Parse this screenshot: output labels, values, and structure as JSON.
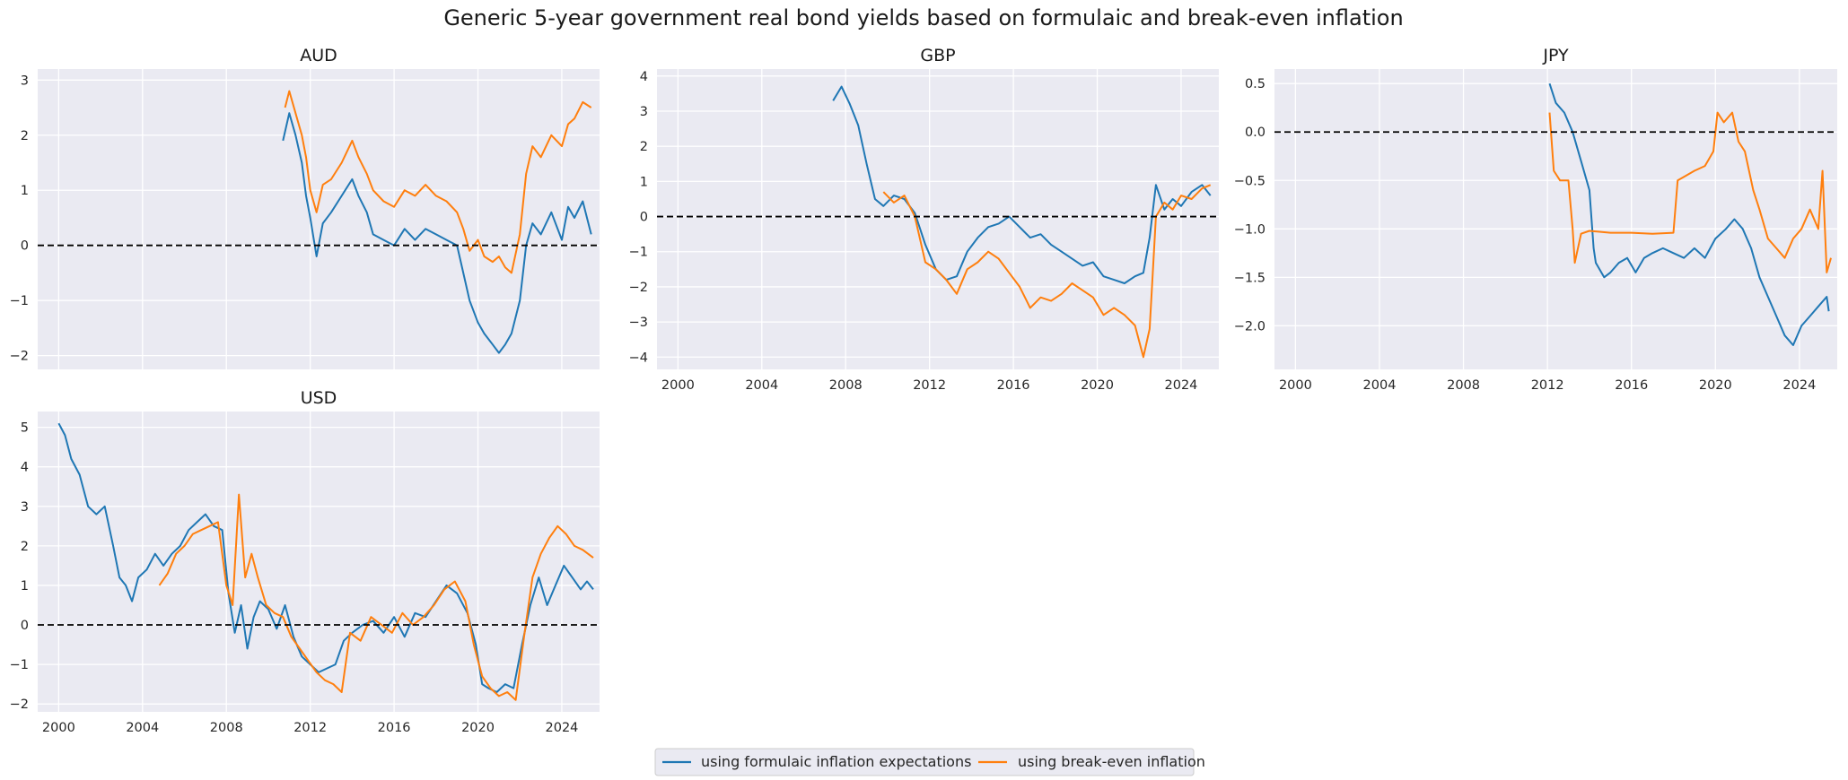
{
  "title": "Generic 5-year government real bond yields based on formulaic and break-even inflation",
  "legend": [
    {
      "label": "using formulaic inflation expectations",
      "color": "#1f77b4"
    },
    {
      "label": "using break-even inflation",
      "color": "#ff7f0e"
    }
  ],
  "colors": {
    "series1": "#1f77b4",
    "series2": "#ff7f0e",
    "panel_bg": "#eaeaf2",
    "grid": "#ffffff",
    "zero_line": "#000000"
  },
  "chart_data": [
    {
      "type": "line",
      "title": "AUD",
      "xlim": [
        1999,
        2025.8
      ],
      "ylim": [
        -2.25,
        3.2
      ],
      "yticks": [
        -2,
        -1,
        0,
        1,
        2,
        3
      ],
      "ytick_labels": [
        "−2",
        "−1",
        "0",
        "1",
        "2",
        "3"
      ],
      "xticks": [
        2000,
        2004,
        2008,
        2012,
        2016,
        2020,
        2024
      ],
      "xtick_labels": [],
      "zero_line": 0,
      "series": [
        {
          "name": "using formulaic inflation expectations",
          "x": [
            2010.7,
            2011.0,
            2011.3,
            2011.6,
            2011.8,
            2012.0,
            2012.3,
            2012.6,
            2013.0,
            2013.5,
            2014.0,
            2014.3,
            2014.7,
            2015.0,
            2015.5,
            2016.0,
            2016.5,
            2017.0,
            2017.5,
            2018.0,
            2018.5,
            2019.0,
            2019.3,
            2019.6,
            2020.0,
            2020.3,
            2020.7,
            2021.0,
            2021.3,
            2021.6,
            2022.0,
            2022.3,
            2022.6,
            2023.0,
            2023.5,
            2024.0,
            2024.3,
            2024.6,
            2025.0,
            2025.4
          ],
          "values": [
            1.9,
            2.4,
            2.0,
            1.5,
            0.9,
            0.5,
            -0.2,
            0.4,
            0.6,
            0.9,
            1.2,
            0.9,
            0.6,
            0.2,
            0.1,
            0.0,
            0.3,
            0.1,
            0.3,
            0.2,
            0.1,
            0.0,
            -0.5,
            -1.0,
            -1.4,
            -1.6,
            -1.8,
            -1.95,
            -1.8,
            -1.6,
            -1.0,
            0.0,
            0.4,
            0.2,
            0.6,
            0.1,
            0.7,
            0.5,
            0.8,
            0.2
          ]
        },
        {
          "name": "using break-even inflation",
          "x": [
            2010.8,
            2011.0,
            2011.3,
            2011.6,
            2011.8,
            2012.0,
            2012.3,
            2012.6,
            2013.0,
            2013.5,
            2014.0,
            2014.3,
            2014.7,
            2015.0,
            2015.5,
            2016.0,
            2016.5,
            2017.0,
            2017.5,
            2018.0,
            2018.5,
            2019.0,
            2019.3,
            2019.6,
            2020.0,
            2020.3,
            2020.7,
            2021.0,
            2021.3,
            2021.6,
            2022.0,
            2022.3,
            2022.6,
            2023.0,
            2023.5,
            2024.0,
            2024.3,
            2024.6,
            2025.0,
            2025.4
          ],
          "values": [
            2.5,
            2.8,
            2.4,
            2.0,
            1.6,
            1.0,
            0.6,
            1.1,
            1.2,
            1.5,
            1.9,
            1.6,
            1.3,
            1.0,
            0.8,
            0.7,
            1.0,
            0.9,
            1.1,
            0.9,
            0.8,
            0.6,
            0.3,
            -0.1,
            0.1,
            -0.2,
            -0.3,
            -0.2,
            -0.4,
            -0.5,
            0.2,
            1.3,
            1.8,
            1.6,
            2.0,
            1.8,
            2.2,
            2.3,
            2.6,
            2.5
          ]
        }
      ]
    },
    {
      "type": "line",
      "title": "GBP",
      "xlim": [
        1999,
        2025.8
      ],
      "ylim": [
        -4.35,
        4.2
      ],
      "yticks": [
        -4,
        -3,
        -2,
        -1,
        0,
        1,
        2,
        3,
        4
      ],
      "ytick_labels": [
        "−4",
        "−3",
        "−2",
        "−1",
        "0",
        "1",
        "2",
        "3",
        "4"
      ],
      "xticks": [
        2000,
        2004,
        2008,
        2012,
        2016,
        2020,
        2024
      ],
      "xtick_labels": [
        "2000",
        "2004",
        "2008",
        "2012",
        "2016",
        "2020",
        "2024"
      ],
      "zero_line": 0,
      "series": [
        {
          "name": "using formulaic inflation expectations",
          "x": [
            2007.4,
            2007.8,
            2008.2,
            2008.6,
            2009.0,
            2009.4,
            2009.8,
            2010.3,
            2010.8,
            2011.3,
            2011.8,
            2012.3,
            2012.8,
            2013.3,
            2013.8,
            2014.3,
            2014.8,
            2015.3,
            2015.8,
            2016.3,
            2016.8,
            2017.3,
            2017.8,
            2018.3,
            2018.8,
            2019.3,
            2019.8,
            2020.3,
            2020.8,
            2021.3,
            2021.8,
            2022.2,
            2022.5,
            2022.8,
            2023.2,
            2023.6,
            2024.0,
            2024.5,
            2025.0,
            2025.4
          ],
          "values": [
            3.3,
            3.7,
            3.2,
            2.6,
            1.5,
            0.5,
            0.3,
            0.6,
            0.5,
            0.1,
            -0.8,
            -1.5,
            -1.8,
            -1.7,
            -1.0,
            -0.6,
            -0.3,
            -0.2,
            0.0,
            -0.3,
            -0.6,
            -0.5,
            -0.8,
            -1.0,
            -1.2,
            -1.4,
            -1.3,
            -1.7,
            -1.8,
            -1.9,
            -1.7,
            -1.6,
            -0.6,
            0.9,
            0.2,
            0.5,
            0.3,
            0.7,
            0.9,
            0.6
          ]
        },
        {
          "name": "using break-even inflation",
          "x": [
            2009.8,
            2010.3,
            2010.8,
            2011.3,
            2011.8,
            2012.3,
            2012.8,
            2013.3,
            2013.8,
            2014.3,
            2014.8,
            2015.3,
            2015.8,
            2016.3,
            2016.8,
            2017.3,
            2017.8,
            2018.3,
            2018.8,
            2019.3,
            2019.8,
            2020.3,
            2020.8,
            2021.3,
            2021.8,
            2022.2,
            2022.5,
            2022.8,
            2023.2,
            2023.6,
            2024.0,
            2024.5,
            2025.0,
            2025.4
          ],
          "values": [
            0.7,
            0.4,
            0.6,
            0.0,
            -1.3,
            -1.5,
            -1.8,
            -2.2,
            -1.5,
            -1.3,
            -1.0,
            -1.2,
            -1.6,
            -2.0,
            -2.6,
            -2.3,
            -2.4,
            -2.2,
            -1.9,
            -2.1,
            -2.3,
            -2.8,
            -2.6,
            -2.8,
            -3.1,
            -4.0,
            -3.2,
            0.0,
            0.4,
            0.2,
            0.6,
            0.5,
            0.8,
            0.9
          ]
        }
      ]
    },
    {
      "type": "line",
      "title": "JPY",
      "xlim": [
        1999,
        2025.8
      ],
      "ylim": [
        -2.45,
        0.65
      ],
      "yticks": [
        -2.0,
        -1.5,
        -1.0,
        -0.5,
        0.0,
        0.5
      ],
      "ytick_labels": [
        "−2.0",
        "−1.5",
        "−1.0",
        "−0.5",
        "0.0",
        "0.5"
      ],
      "xticks": [
        2000,
        2004,
        2008,
        2012,
        2016,
        2020,
        2024
      ],
      "xtick_labels": [
        "2000",
        "2004",
        "2008",
        "2012",
        "2016",
        "2020",
        "2024"
      ],
      "zero_line": 0,
      "series": [
        {
          "name": "using formulaic inflation expectations",
          "x": [
            2012.1,
            2012.4,
            2012.8,
            2013.2,
            2013.6,
            2014.0,
            2014.2,
            2014.3,
            2014.7,
            2015.0,
            2015.4,
            2015.8,
            2016.2,
            2016.6,
            2017.0,
            2017.5,
            2018.0,
            2018.5,
            2019.0,
            2019.5,
            2020.0,
            2020.5,
            2020.9,
            2021.3,
            2021.7,
            2022.1,
            2022.5,
            2022.9,
            2023.3,
            2023.7,
            2024.1,
            2024.5,
            2024.9,
            2025.3,
            2025.4
          ],
          "values": [
            0.5,
            0.3,
            0.2,
            0.0,
            -0.3,
            -0.6,
            -1.2,
            -1.35,
            -1.5,
            -1.45,
            -1.35,
            -1.3,
            -1.45,
            -1.3,
            -1.25,
            -1.2,
            -1.25,
            -1.3,
            -1.2,
            -1.3,
            -1.1,
            -1.0,
            -0.9,
            -1.0,
            -1.2,
            -1.5,
            -1.7,
            -1.9,
            -2.1,
            -2.2,
            -2.0,
            -1.9,
            -1.8,
            -1.7,
            -1.85
          ]
        },
        {
          "name": "using break-even inflation",
          "x": [
            2012.1,
            2012.3,
            2012.6,
            2013.0,
            2013.2,
            2013.3,
            2013.6,
            2014.0,
            2015.0,
            2016.0,
            2017.0,
            2018.0,
            2018.2,
            2018.6,
            2019.0,
            2019.5,
            2019.9,
            2020.1,
            2020.4,
            2020.8,
            2021.1,
            2021.4,
            2021.8,
            2022.1,
            2022.5,
            2022.9,
            2023.3,
            2023.7,
            2024.1,
            2024.5,
            2024.9,
            2025.1,
            2025.3,
            2025.5
          ],
          "values": [
            0.2,
            -0.4,
            -0.5,
            -0.5,
            -1.0,
            -1.35,
            -1.05,
            -1.02,
            -1.04,
            -1.04,
            -1.05,
            -1.04,
            -0.5,
            -0.45,
            -0.4,
            -0.35,
            -0.2,
            0.2,
            0.1,
            0.2,
            -0.1,
            -0.2,
            -0.6,
            -0.8,
            -1.1,
            -1.2,
            -1.3,
            -1.1,
            -1.0,
            -0.8,
            -1.0,
            -0.4,
            -1.45,
            -1.3
          ]
        }
      ]
    },
    {
      "type": "line",
      "title": "USD",
      "xlim": [
        1999,
        2025.8
      ],
      "ylim": [
        -2.2,
        5.4
      ],
      "yticks": [
        -2,
        -1,
        0,
        1,
        2,
        3,
        4,
        5
      ],
      "ytick_labels": [
        "−2",
        "−1",
        "0",
        "1",
        "2",
        "3",
        "4",
        "5"
      ],
      "xticks": [
        2000,
        2004,
        2008,
        2012,
        2016,
        2020,
        2024
      ],
      "xtick_labels": [
        "2000",
        "2004",
        "2008",
        "2012",
        "2016",
        "2020",
        "2024"
      ],
      "zero_line": 0,
      "series": [
        {
          "name": "using formulaic inflation expectations",
          "x": [
            2000.0,
            2000.3,
            2000.6,
            2001.0,
            2001.4,
            2001.8,
            2002.2,
            2002.6,
            2002.9,
            2003.2,
            2003.5,
            2003.8,
            2004.2,
            2004.6,
            2005.0,
            2005.4,
            2005.8,
            2006.2,
            2006.6,
            2007.0,
            2007.4,
            2007.8,
            2008.1,
            2008.4,
            2008.7,
            2009.0,
            2009.3,
            2009.6,
            2010.0,
            2010.4,
            2010.8,
            2011.2,
            2011.6,
            2012.0,
            2012.4,
            2012.8,
            2013.2,
            2013.6,
            2014.0,
            2014.5,
            2015.0,
            2015.5,
            2016.0,
            2016.5,
            2017.0,
            2017.5,
            2018.0,
            2018.5,
            2019.0,
            2019.5,
            2019.9,
            2020.2,
            2020.5,
            2020.9,
            2021.3,
            2021.7,
            2022.1,
            2022.5,
            2022.9,
            2023.3,
            2023.7,
            2024.1,
            2024.5,
            2024.9,
            2025.2,
            2025.5
          ],
          "values": [
            5.1,
            4.8,
            4.2,
            3.8,
            3.0,
            2.8,
            3.0,
            2.0,
            1.2,
            1.0,
            0.6,
            1.2,
            1.4,
            1.8,
            1.5,
            1.8,
            2.0,
            2.4,
            2.6,
            2.8,
            2.5,
            2.4,
            0.8,
            -0.2,
            0.5,
            -0.6,
            0.2,
            0.6,
            0.4,
            -0.1,
            0.5,
            -0.3,
            -0.8,
            -1.0,
            -1.2,
            -1.1,
            -1.0,
            -0.4,
            -0.2,
            0.0,
            0.1,
            -0.2,
            0.2,
            -0.3,
            0.3,
            0.2,
            0.6,
            1.0,
            0.8,
            0.3,
            -0.5,
            -1.5,
            -1.6,
            -1.7,
            -1.5,
            -1.6,
            -0.5,
            0.5,
            1.2,
            0.5,
            1.0,
            1.5,
            1.2,
            0.9,
            1.1,
            0.9
          ]
        },
        {
          "name": "using break-even inflation",
          "x": [
            2004.8,
            2005.2,
            2005.6,
            2006.0,
            2006.4,
            2006.8,
            2007.2,
            2007.6,
            2008.0,
            2008.3,
            2008.6,
            2008.9,
            2009.2,
            2009.5,
            2009.9,
            2010.3,
            2010.7,
            2011.1,
            2011.5,
            2011.9,
            2012.3,
            2012.7,
            2013.1,
            2013.5,
            2013.9,
            2014.4,
            2014.9,
            2015.4,
            2015.9,
            2016.4,
            2016.9,
            2017.4,
            2017.9,
            2018.4,
            2018.9,
            2019.4,
            2019.8,
            2020.2,
            2020.6,
            2021.0,
            2021.4,
            2021.8,
            2022.2,
            2022.6,
            2023.0,
            2023.4,
            2023.8,
            2024.2,
            2024.6,
            2025.0,
            2025.5
          ],
          "values": [
            1.0,
            1.3,
            1.8,
            2.0,
            2.3,
            2.4,
            2.5,
            2.6,
            1.0,
            0.5,
            3.3,
            1.2,
            1.8,
            1.2,
            0.5,
            0.3,
            0.2,
            -0.3,
            -0.6,
            -0.9,
            -1.2,
            -1.4,
            -1.5,
            -1.7,
            -0.2,
            -0.4,
            0.2,
            0.0,
            -0.2,
            0.3,
            0.0,
            0.2,
            0.5,
            0.9,
            1.1,
            0.6,
            -0.5,
            -1.3,
            -1.6,
            -1.8,
            -1.7,
            -1.9,
            -0.3,
            1.2,
            1.8,
            2.2,
            2.5,
            2.3,
            2.0,
            1.9,
            1.7
          ]
        }
      ]
    }
  ]
}
